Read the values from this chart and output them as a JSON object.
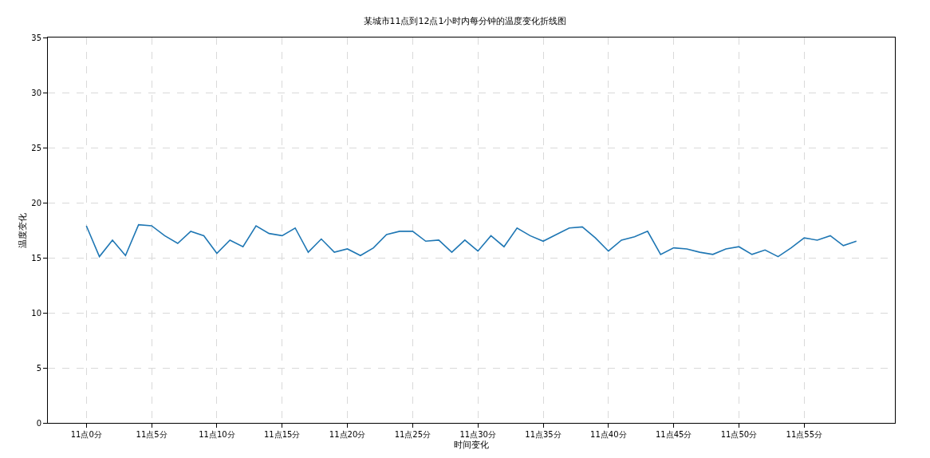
{
  "chart_data": {
    "type": "line",
    "title": "某城市11点到12点1小时内每分钟的温度变化折线图",
    "xlabel": "时间变化",
    "ylabel": "温度变化",
    "categories": [
      "11点0分",
      null,
      null,
      null,
      null,
      "11点5分",
      null,
      null,
      null,
      null,
      "11点10分",
      null,
      null,
      null,
      null,
      "11点15分",
      null,
      null,
      null,
      null,
      "11点20分",
      null,
      null,
      null,
      null,
      "11点25分",
      null,
      null,
      null,
      null,
      "11点30分",
      null,
      null,
      null,
      null,
      "11点35分",
      null,
      null,
      null,
      null,
      "11点40分",
      null,
      null,
      null,
      null,
      "11点45分",
      null,
      null,
      null,
      null,
      "11点50分",
      null,
      null,
      null,
      null,
      "11点55分",
      null,
      null,
      null,
      null
    ],
    "series": [
      {
        "color": "#1f77b4",
        "values": [
          17.9,
          15.1,
          16.6,
          15.2,
          18.0,
          17.9,
          17.0,
          16.3,
          17.4,
          17.0,
          15.4,
          16.6,
          16.0,
          17.9,
          17.2,
          17.0,
          17.7,
          15.5,
          16.7,
          15.5,
          15.8,
          15.2,
          15.9,
          17.1,
          17.4,
          17.4,
          16.5,
          16.6,
          15.5,
          16.6,
          15.6,
          17.0,
          16.0,
          17.7,
          17.0,
          16.5,
          17.1,
          17.7,
          17.8,
          16.8,
          15.6,
          16.6,
          16.9,
          17.4,
          15.3,
          15.9,
          15.8,
          15.5,
          15.3,
          15.8,
          16.0,
          15.3,
          15.7,
          15.1,
          15.9,
          16.8,
          16.6,
          17.0,
          16.1,
          16.5
        ]
      }
    ],
    "ylim": [
      0,
      35
    ],
    "yticks": [
      0,
      5,
      10,
      15,
      20,
      25,
      30,
      35
    ],
    "grid": true
  }
}
